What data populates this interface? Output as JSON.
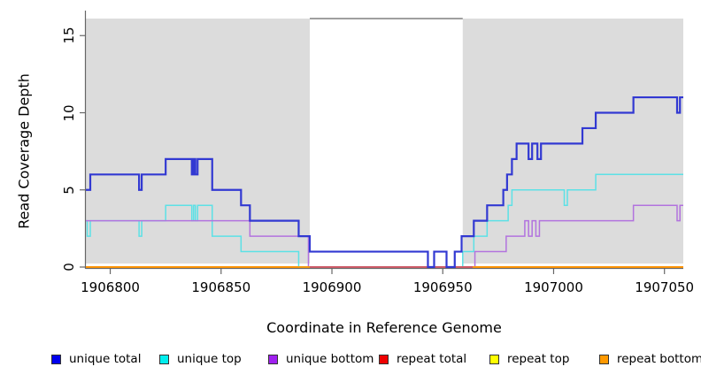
{
  "chart_data": {
    "type": "line",
    "subtype": "step-coverage",
    "title": "",
    "xlabel": "Coordinate in Reference Genome",
    "ylabel": "Read Coverage Depth",
    "xlim": [
      1906789,
      1907058.5
    ],
    "ylim": [
      0,
      16.1
    ],
    "xticks": [
      1906800,
      1906850,
      1906900,
      1906950,
      1907000,
      1907050
    ],
    "xtick_labels": [
      "1906800",
      "1906850",
      "1906900",
      "1906950",
      "1907000",
      "1907050"
    ],
    "yticks": [
      0,
      5,
      10,
      15
    ],
    "ytick_labels": [
      "0",
      "5",
      "10",
      "15"
    ],
    "grid": false,
    "shaded_regions": [
      {
        "name": "left-gray-region",
        "x0": 1906789,
        "x1": 1906890,
        "color": "#dcdcdc"
      },
      {
        "name": "right-gray-region",
        "x0": 1906959,
        "x1": 1907058.5,
        "color": "#dcdcdc"
      }
    ],
    "gap_top_line": {
      "x0": 1906890,
      "x1": 1906959,
      "color": "#666666"
    },
    "draw_order": [
      "repeat top",
      "repeat total",
      "unique top",
      "unique bottom",
      "repeat bottom"
    ],
    "overlay_segment": {
      "name": "zero-line-overlap",
      "x0": 1906890,
      "x1": 1906963.5,
      "value": 0,
      "color": "#c4487c"
    },
    "series": [
      {
        "name": "unique total",
        "color": "#3239d2",
        "steps": [
          [
            1906789,
            5
          ],
          [
            1906791,
            6
          ],
          [
            1906813,
            5
          ],
          [
            1906814.2,
            6
          ],
          [
            1906825,
            7
          ],
          [
            1906836.8,
            6
          ],
          [
            1906837.6,
            7
          ],
          [
            1906838.4,
            6
          ],
          [
            1906839.4,
            7
          ],
          [
            1906846,
            5
          ],
          [
            1906859,
            4
          ],
          [
            1906863,
            3
          ],
          [
            1906885,
            2
          ],
          [
            1906890,
            1
          ],
          [
            1906943.3,
            0
          ],
          [
            1906946.1,
            1
          ],
          [
            1906951.7,
            0
          ],
          [
            1906955.4,
            1
          ],
          [
            1906958.5,
            2
          ],
          [
            1906964,
            3
          ],
          [
            1906970,
            4
          ],
          [
            1906977.3,
            5
          ],
          [
            1906979,
            6
          ],
          [
            1906981.2,
            7
          ],
          [
            1906983.3,
            8
          ],
          [
            1906988.7,
            7
          ],
          [
            1906990.3,
            8
          ],
          [
            1906992.7,
            7
          ],
          [
            1906994.3,
            8
          ],
          [
            1907013,
            9
          ],
          [
            1907019,
            10
          ],
          [
            1907036,
            11
          ],
          [
            1907055.7,
            10
          ],
          [
            1907057,
            11
          ]
        ]
      },
      {
        "name": "unique top",
        "color": "#5ce1e6",
        "steps": [
          [
            1906789,
            3
          ],
          [
            1906789.6,
            2
          ],
          [
            1906791,
            3
          ],
          [
            1906813,
            2
          ],
          [
            1906814.2,
            3
          ],
          [
            1906825,
            4
          ],
          [
            1906836.8,
            3
          ],
          [
            1906837.6,
            4
          ],
          [
            1906838.4,
            3
          ],
          [
            1906839.4,
            4
          ],
          [
            1906846,
            2
          ],
          [
            1906859,
            1
          ],
          [
            1906885,
            0
          ],
          [
            1906959,
            1
          ],
          [
            1906964,
            2
          ],
          [
            1906970,
            3
          ],
          [
            1906979.5,
            4
          ],
          [
            1906981.2,
            5
          ],
          [
            1907004.8,
            4
          ],
          [
            1907006.2,
            5
          ],
          [
            1907019,
            6
          ]
        ]
      },
      {
        "name": "unique bottom",
        "color": "#b273de",
        "steps": [
          [
            1906789,
            3
          ],
          [
            1906863,
            2
          ],
          [
            1906889.4,
            0
          ],
          [
            1906964.5,
            1
          ],
          [
            1906978.6,
            2
          ],
          [
            1906987,
            3
          ],
          [
            1906988.7,
            2
          ],
          [
            1906990.3,
            3
          ],
          [
            1906992,
            2
          ],
          [
            1906993.6,
            3
          ],
          [
            1907036,
            4
          ],
          [
            1907055.7,
            3
          ],
          [
            1907057,
            4
          ]
        ]
      },
      {
        "name": "repeat total",
        "color": "#ee0000",
        "steps": [
          [
            1906789,
            0
          ]
        ]
      },
      {
        "name": "repeat top",
        "color": "#ffff00",
        "steps": [
          [
            1906789,
            0
          ]
        ]
      },
      {
        "name": "repeat bottom",
        "color": "#ff9800",
        "steps": [
          [
            1906789,
            0
          ]
        ]
      }
    ]
  },
  "legend": {
    "items": [
      {
        "label": "unique total",
        "color": "#0000ee"
      },
      {
        "label": "unique top",
        "color": "#00eeee"
      },
      {
        "label": "unique bottom",
        "color": "#a020f0"
      },
      {
        "label": "repeat total",
        "color": "#ee0000"
      },
      {
        "label": "repeat top",
        "color": "#ffff00"
      },
      {
        "label": "repeat bottom",
        "color": "#ff9900"
      }
    ]
  },
  "axes": {
    "x_title": "Coordinate in Reference Genome",
    "y_title": "Read Coverage Depth"
  }
}
